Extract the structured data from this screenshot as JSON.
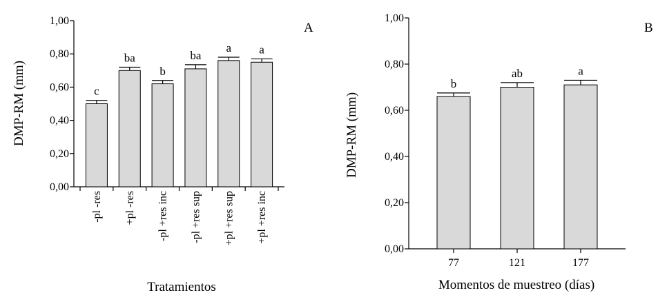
{
  "chart_data": [
    {
      "type": "bar",
      "panel_label": "A",
      "xlabel": "Tratamientos",
      "ylabel": "DMP-RM (mm)",
      "ylim": [
        0,
        1.0
      ],
      "yticks": [
        "0,00",
        "0,20",
        "0,40",
        "0,60",
        "0,80",
        "1,00"
      ],
      "categories": [
        "-pl -res",
        "+pl -res",
        "-pl +res inc",
        "-pl +res sup",
        "+pl +res sup",
        "+pl +res inc"
      ],
      "values": [
        0.5,
        0.7,
        0.62,
        0.71,
        0.76,
        0.75
      ],
      "errors": [
        0.02,
        0.02,
        0.02,
        0.025,
        0.02,
        0.02
      ],
      "labels": [
        "c",
        "ba",
        "b",
        "ba",
        "a",
        "a"
      ],
      "grid": false,
      "bar_color": "#d9d9d9"
    },
    {
      "type": "bar",
      "panel_label": "B",
      "xlabel": "Momentos de muestreo (días)",
      "ylabel": "DMP-RM (mm)",
      "ylim": [
        0,
        1.0
      ],
      "yticks": [
        "0,00",
        "0,20",
        "0,40",
        "0,60",
        "0,80",
        "1,00"
      ],
      "categories": [
        "77",
        "121",
        "177"
      ],
      "values": [
        0.66,
        0.7,
        0.71
      ],
      "errors": [
        0.015,
        0.02,
        0.02
      ],
      "labels": [
        "b",
        "ab",
        "a"
      ],
      "grid": false,
      "bar_color": "#d9d9d9"
    }
  ]
}
